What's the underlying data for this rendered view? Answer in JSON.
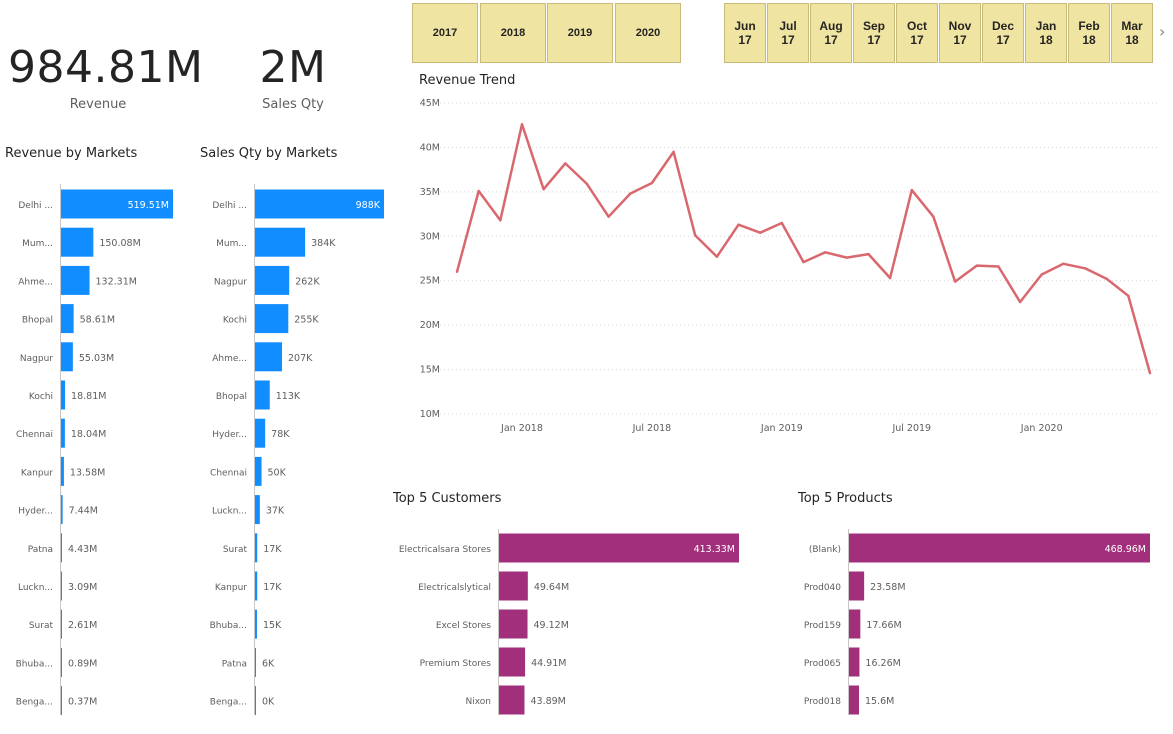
{
  "kpis": [
    {
      "value": "984.81M",
      "label": "Revenue"
    },
    {
      "value": "2M",
      "label": "Sales Qty"
    }
  ],
  "year_slicer": [
    "2017",
    "2018",
    "2019",
    "2020"
  ],
  "month_slicer": [
    {
      "month": "Jun",
      "year": "17"
    },
    {
      "month": "Jul",
      "year": "17"
    },
    {
      "month": "Aug",
      "year": "17"
    },
    {
      "month": "Sep",
      "year": "17"
    },
    {
      "month": "Oct",
      "year": "17"
    },
    {
      "month": "Nov",
      "year": "17"
    },
    {
      "month": "Dec",
      "year": "17"
    },
    {
      "month": "Jan",
      "year": "18"
    },
    {
      "month": "Feb",
      "year": "18"
    },
    {
      "month": "Mar",
      "year": "18"
    }
  ],
  "colors": {
    "blue": "#118dff",
    "purple": "#a12f7b",
    "line": "#d9686e",
    "slicer": "#f0e4a2"
  },
  "chart_data": [
    {
      "id": "revenue_markets",
      "type": "bar",
      "orientation": "horizontal",
      "title": "Revenue by Markets",
      "categories": [
        "Delhi ...",
        "Mum...",
        "Ahme...",
        "Bhopal",
        "Nagpur",
        "Kochi",
        "Chennai",
        "Kanpur",
        "Hyder...",
        "Patna",
        "Luckn...",
        "Surat",
        "Bhuba...",
        "Benga..."
      ],
      "values": [
        519.51,
        150.08,
        132.31,
        58.61,
        55.03,
        18.81,
        18.04,
        13.58,
        7.44,
        4.43,
        3.09,
        2.61,
        0.89,
        0.37
      ],
      "labels": [
        "519.51M",
        "150.08M",
        "132.31M",
        "58.61M",
        "55.03M",
        "18.81M",
        "18.04M",
        "13.58M",
        "7.44M",
        "4.43M",
        "3.09M",
        "2.61M",
        "0.89M",
        "0.37M"
      ],
      "max": 519.51
    },
    {
      "id": "qty_markets",
      "type": "bar",
      "orientation": "horizontal",
      "title": "Sales Qty by Markets",
      "categories": [
        "Delhi ...",
        "Mum...",
        "Nagpur",
        "Kochi",
        "Ahme...",
        "Bhopal",
        "Hyder...",
        "Chennai",
        "Luckn...",
        "Surat",
        "Kanpur",
        "Bhuba...",
        "Patna",
        "Benga..."
      ],
      "values": [
        988,
        384,
        262,
        255,
        207,
        113,
        78,
        50,
        37,
        17,
        17,
        15,
        6,
        0
      ],
      "labels": [
        "988K",
        "384K",
        "262K",
        "255K",
        "207K",
        "113K",
        "78K",
        "50K",
        "37K",
        "17K",
        "17K",
        "15K",
        "6K",
        "0K"
      ],
      "max": 988
    },
    {
      "id": "revenue_trend",
      "type": "line",
      "title": "Revenue Trend",
      "x": [
        "2017-10",
        "2017-11",
        "2017-12",
        "2018-01",
        "2018-02",
        "2018-03",
        "2018-04",
        "2018-05",
        "2018-06",
        "2018-07",
        "2018-08",
        "2018-09",
        "2018-10",
        "2018-11",
        "2018-12",
        "2019-01",
        "2019-02",
        "2019-03",
        "2019-04",
        "2019-05",
        "2019-06",
        "2019-07",
        "2019-08",
        "2019-09",
        "2019-10",
        "2019-11",
        "2019-12",
        "2020-01",
        "2020-02",
        "2020-03",
        "2020-04",
        "2020-05",
        "2020-06"
      ],
      "values": [
        26.0,
        35.1,
        31.8,
        42.6,
        35.3,
        38.2,
        35.9,
        32.2,
        34.8,
        36.0,
        39.5,
        30.1,
        27.7,
        31.3,
        30.4,
        31.5,
        27.1,
        28.2,
        27.6,
        28.0,
        25.3,
        35.2,
        32.2,
        24.9,
        26.7,
        26.6,
        22.6,
        25.7,
        26.9,
        26.4,
        25.2,
        23.3,
        14.6
      ],
      "x_ticks": [
        {
          "index": 3,
          "label": "Jan 2018"
        },
        {
          "index": 9,
          "label": "Jul 2018"
        },
        {
          "index": 15,
          "label": "Jan 2019"
        },
        {
          "index": 21,
          "label": "Jul 2019"
        },
        {
          "index": 27,
          "label": "Jan 2020"
        }
      ],
      "y_ticks": [
        10,
        15,
        20,
        25,
        30,
        35,
        40,
        45
      ],
      "y_tick_labels": [
        "10M",
        "15M",
        "20M",
        "25M",
        "30M",
        "35M",
        "40M",
        "45M"
      ],
      "ylim": [
        10,
        45
      ],
      "grid": true
    },
    {
      "id": "top_customers",
      "type": "bar",
      "orientation": "horizontal",
      "title": "Top 5 Customers",
      "categories": [
        "Electricalsara Stores",
        "Electricalslytical",
        "Excel Stores",
        "Premium Stores",
        "Nixon"
      ],
      "values": [
        413.33,
        49.64,
        49.12,
        44.91,
        43.89
      ],
      "labels": [
        "413.33M",
        "49.64M",
        "49.12M",
        "44.91M",
        "43.89M"
      ],
      "max": 413.33
    },
    {
      "id": "top_products",
      "type": "bar",
      "orientation": "horizontal",
      "title": "Top 5 Products",
      "categories": [
        "(Blank)",
        "Prod040",
        "Prod159",
        "Prod065",
        "Prod018"
      ],
      "values": [
        468.96,
        23.58,
        17.66,
        16.26,
        15.6
      ],
      "labels": [
        "468.96M",
        "23.58M",
        "17.66M",
        "16.26M",
        "15.6M"
      ],
      "max": 468.96
    }
  ]
}
